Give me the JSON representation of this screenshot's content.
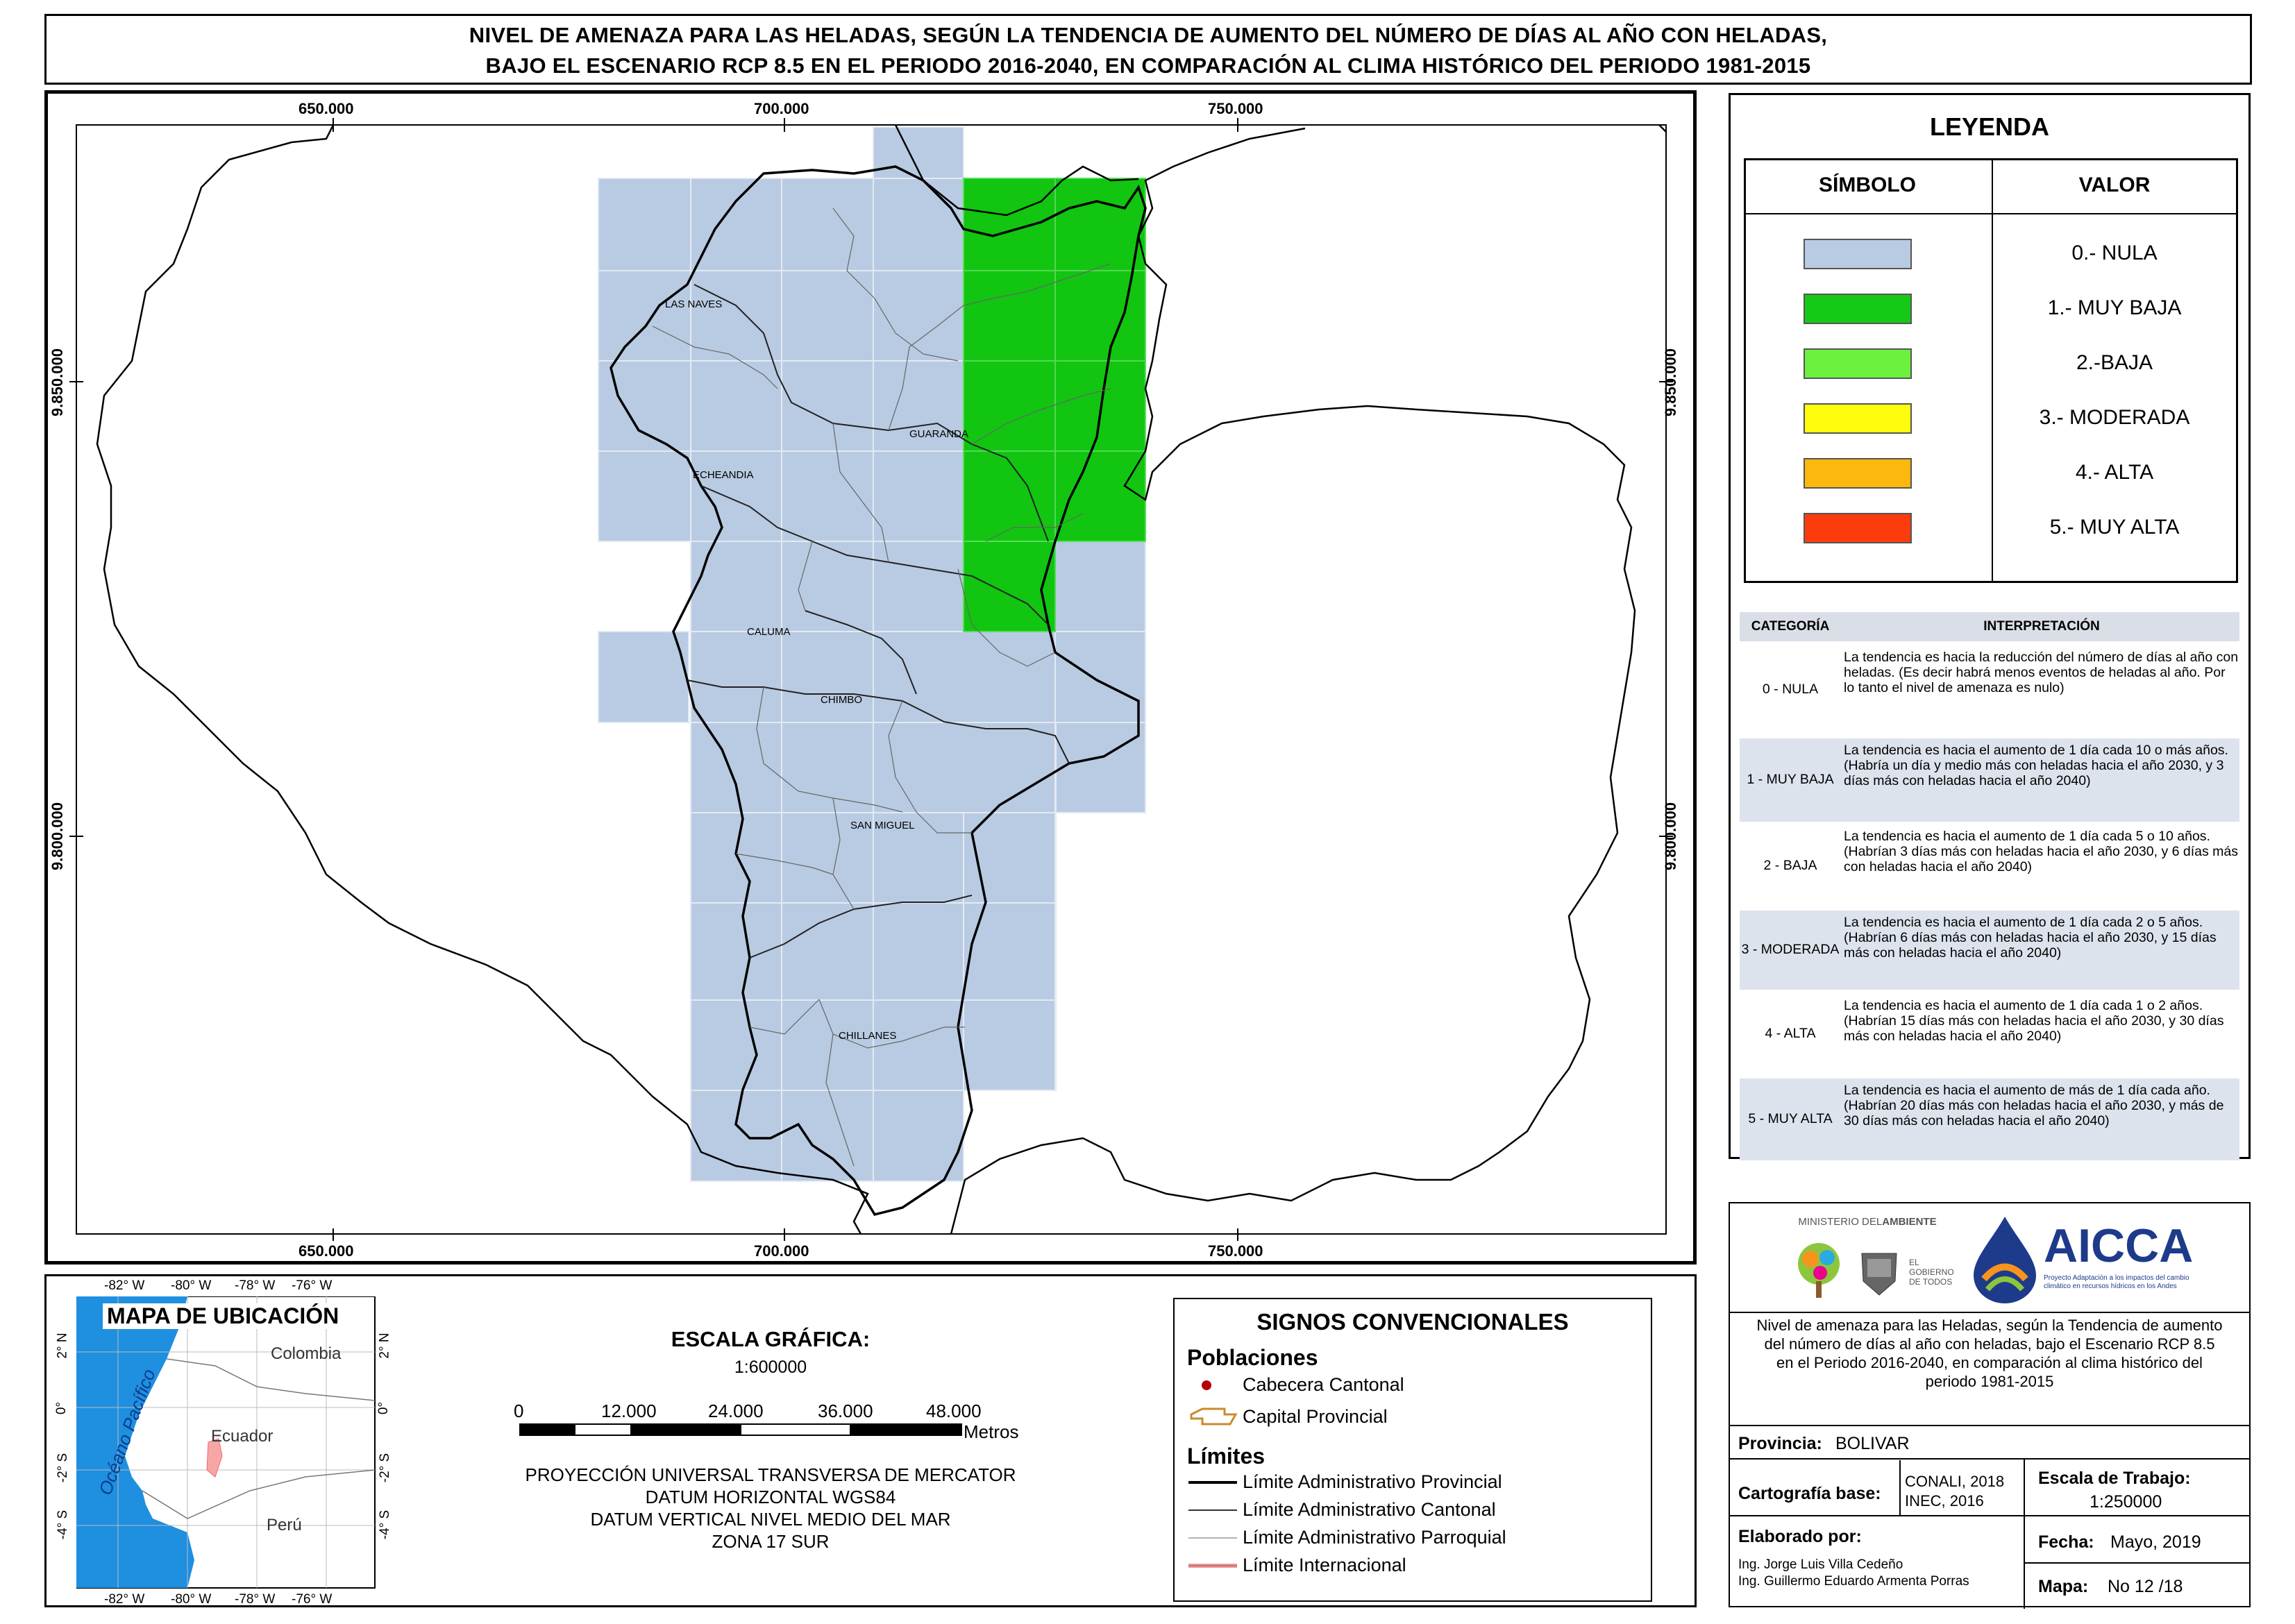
{
  "title": {
    "line1": "NIVEL DE AMENAZA PARA LAS HELADAS, SEGÚN LA TENDENCIA DE AUMENTO DEL NÚMERO DE DÍAS AL AÑO CON HELADAS,",
    "line2": "BAJO EL ESCENARIO RCP 8.5 EN EL PERIODO 2016-2040, EN COMPARACIÓN AL CLIMA HISTÓRICO DEL PERIODO 1981-2015"
  },
  "map": {
    "x_ticks": [
      "650.000",
      "700.000",
      "750.000"
    ],
    "y_ticks": [
      "9.850.000",
      "9.800.000"
    ],
    "places": [
      "LAS NAVES",
      "GUARANDA",
      "ECHEANDIA",
      "CALUMA",
      "CHIMBO",
      "SAN MIGUEL",
      "CHILLANES"
    ]
  },
  "legend": {
    "title": "LEYENDA",
    "col_symbol": "SÍMBOLO",
    "col_value": "VALOR",
    "items": [
      {
        "label": "0.- NULA",
        "color": "#b9cbe2"
      },
      {
        "label": "1.- MUY BAJA",
        "color": "#16c916"
      },
      {
        "label": "2.-BAJA",
        "color": "#6cf23e"
      },
      {
        "label": "3.- MODERADA",
        "color": "#fcfc0c"
      },
      {
        "label": "4.- ALTA",
        "color": "#fcb80c"
      },
      {
        "label": "5.- MUY ALTA",
        "color": "#fc3c0c"
      }
    ]
  },
  "interpretation": {
    "col_category": "CATEGORÍA",
    "col_interp": "INTERPRETACIÓN",
    "rows": [
      {
        "cat": "0 - NULA",
        "text": "La tendencia es hacia la reducción del número de días al año con heladas. (Es decir habrá menos eventos de heladas al año. Por lo tanto el nivel de amenaza es nulo)"
      },
      {
        "cat": "1 - MUY BAJA",
        "text": "La tendencia es hacia el aumento de 1 día cada 10 o más años. (Habría un día y medio más con heladas hacia el año 2030, y 3 días más con heladas hacia el año 2040)"
      },
      {
        "cat": "2 - BAJA",
        "text": "La tendencia es hacia el aumento de 1 día cada 5 o 10 años. (Habrían 3 días más con heladas hacia el año 2030, y 6 días más con heladas hacia el año 2040)"
      },
      {
        "cat": "3 - MODERADA",
        "text": "La tendencia es hacia el aumento de 1 día cada 2 o 5 años. (Habrían 6 días más con heladas hacia el año 2030, y 15 días más con heladas hacia el año 2040)"
      },
      {
        "cat": "4 - ALTA",
        "text": "La tendencia es hacia el aumento de 1 día cada 1 o 2 años. (Habrían 15 días más con heladas hacia el año 2030, y 30 días más con heladas hacia el año 2040)"
      },
      {
        "cat": "5 - MUY ALTA",
        "text": "La tendencia es hacia el aumento de más de 1 día cada año. (Habrían 20 días más con heladas hacia el año 2030, y más de 30 días más con heladas hacia el año 2040)"
      }
    ]
  },
  "logos": {
    "ministerio_a": "MINISTERIO DEL",
    "ministerio_b": "AMBIENTE",
    "gobierno": "EL GOBIERNO DE TODOS",
    "aicca": "AICCA",
    "aicca_sub": "Proyecto Adaptación a los impactos del cambio climático en recursos hídricos en los Andes"
  },
  "description": "Nivel de amenaza para las Heladas, según la Tendencia de aumento del número de días al año con heladas, bajo el Escenario RCP 8.5 en el Periodo 2016-2040, en comparación al clima histórico del periodo 1981-2015",
  "info": {
    "provincia_label": "Provincia:",
    "provincia_value": "BOLIVAR",
    "cartografia_label": "Cartografía base:",
    "cartografia_value1": "CONALI, 2018",
    "cartografia_value2": "INEC, 2016",
    "escala_label": "Escala de Trabajo:",
    "escala_value": "1:250000",
    "elaborado_label": "Elaborado por:",
    "elaborado_1": "Ing. Jorge Luis Villa Cedeño",
    "elaborado_2": "Ing. Guillermo Eduardo Armenta Porras",
    "fecha_label": "Fecha:",
    "fecha_value": "Mayo, 2019",
    "mapa_label": "Mapa:",
    "mapa_value": "No 12 /18"
  },
  "location_map": {
    "title": "MAPA DE UBICACIÓN",
    "top_ticks": [
      "-82° W",
      "-80° W",
      "-78° W",
      "-76° W"
    ],
    "bottom_ticks": [
      "-82° W",
      "-80° W",
      "-78° W",
      "-76° W"
    ],
    "lat_ticks": [
      "2° N",
      "0°",
      "-2° S",
      "-4° S"
    ],
    "countries": [
      "Colombia",
      "Ecuador",
      "Perú"
    ],
    "ocean": "Océano Pacífico"
  },
  "scale": {
    "title": "ESCALA GRÁFICA:",
    "ratio": "1:600000",
    "ticks": [
      "0",
      "12.000",
      "24.000",
      "36.000",
      "48.000"
    ],
    "unit": "Metros",
    "proj1": "PROYECCIÓN UNIVERSAL TRANSVERSA DE MERCATOR",
    "proj2": "DATUM HORIZONTAL WGS84",
    "proj3": "DATUM VERTICAL NIVEL MEDIO DEL MAR",
    "proj4": "ZONA 17 SUR"
  },
  "signs": {
    "title": "SIGNOS CONVENCIONALES",
    "poblaciones": "Poblaciones",
    "cabecera": "Cabecera Cantonal",
    "capital": "Capital Provincial",
    "limites": "Límites",
    "lim_prov": "Límite Administrativo Provincial",
    "lim_cant": "Límite Administrativo Cantonal",
    "lim_parr": "Límite Administrativo Parroquial",
    "lim_int": "Límite Internacional"
  }
}
